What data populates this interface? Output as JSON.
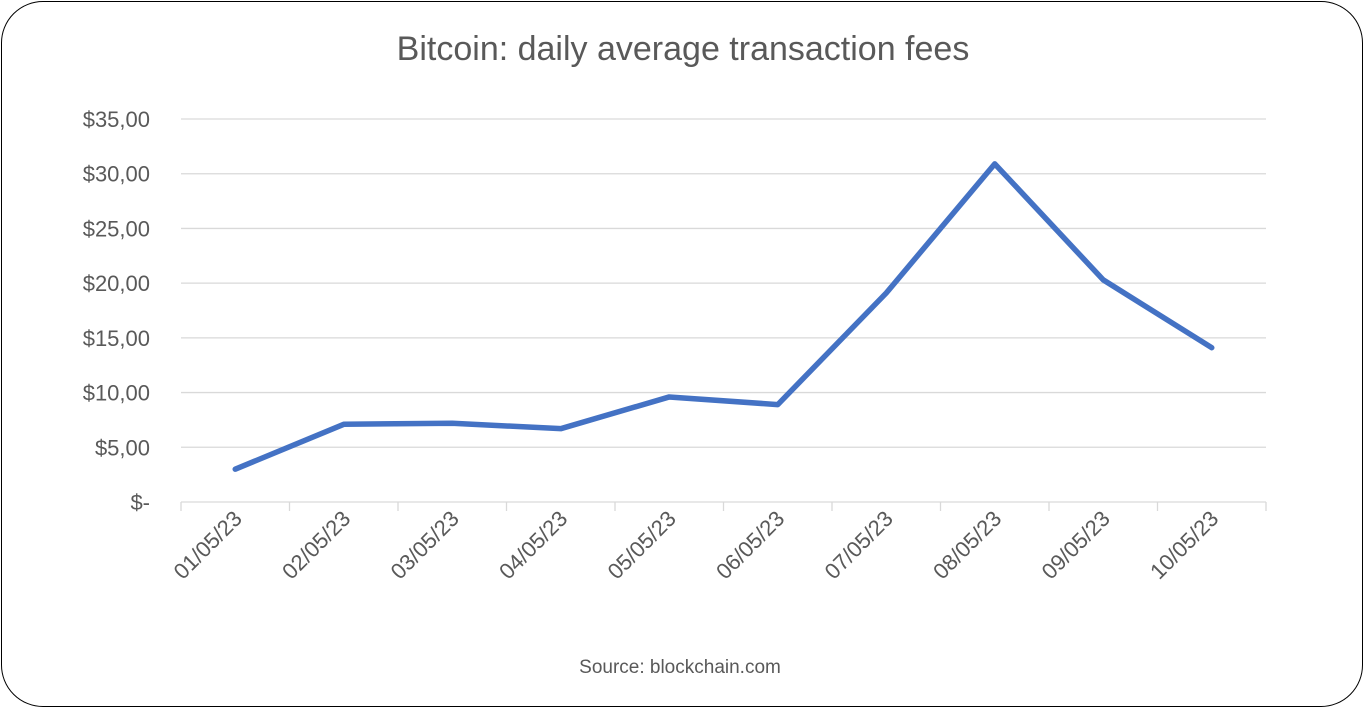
{
  "chart_data": {
    "type": "line",
    "title": "Bitcoin: daily average transaction fees",
    "xlabel": "",
    "ylabel": "",
    "categories": [
      "01/05/23",
      "02/05/23",
      "03/05/23",
      "04/05/23",
      "05/05/23",
      "06/05/23",
      "07/05/23",
      "08/05/23",
      "09/05/23",
      "10/05/23"
    ],
    "values": [
      3.0,
      7.1,
      7.2,
      6.7,
      9.6,
      8.9,
      19.1,
      30.9,
      20.3,
      14.1
    ],
    "ylim": [
      0,
      35
    ],
    "yticks": [
      0,
      5,
      10,
      15,
      20,
      25,
      30,
      35
    ],
    "ytick_labels": [
      "$-",
      "$5,00",
      "$10,00",
      "$15,00",
      "$20,00",
      "$25,00",
      "$30,00",
      "$35,00"
    ],
    "grid": true,
    "legend": "none",
    "line_color": "#4472C4",
    "source": "Source: blockchain.com"
  }
}
